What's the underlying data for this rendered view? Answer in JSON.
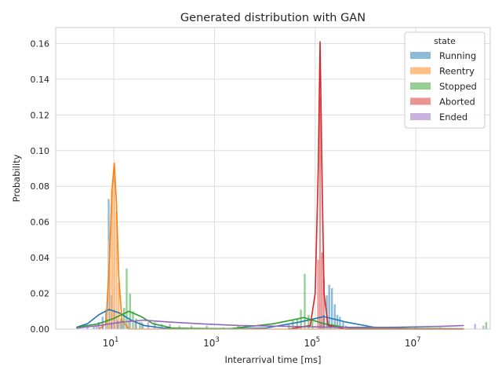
{
  "chart_data": {
    "type": "histogram",
    "title": "Generated distribution with GAN",
    "xlabel": "Interarrival time [ms]",
    "ylabel": "Probability",
    "xscale": "log",
    "xlim": [
      0.7,
      300000000
    ],
    "ylim": [
      0,
      0.169
    ],
    "x_ticks": [
      10,
      1000,
      100000,
      10000000
    ],
    "x_tick_labels": [
      {
        "base": "10",
        "exp": "1"
      },
      {
        "base": "10",
        "exp": "3"
      },
      {
        "base": "10",
        "exp": "5"
      },
      {
        "base": "10",
        "exp": "7"
      }
    ],
    "y_ticks": [
      0,
      0.02,
      0.04,
      0.06,
      0.08,
      0.1,
      0.12,
      0.14,
      0.16
    ],
    "y_tick_labels": [
      "0.00",
      "0.02",
      "0.04",
      "0.06",
      "0.08",
      "0.10",
      "0.12",
      "0.14",
      "0.16"
    ],
    "grid": true,
    "legend_title": "state",
    "legend_position": "upper-right",
    "series": [
      {
        "name": "Running",
        "color": "#1f77b4",
        "bars": [
          {
            "x": 3,
            "y": 0.001
          },
          {
            "x": 4,
            "y": 0.002
          },
          {
            "x": 5,
            "y": 0.004
          },
          {
            "x": 6,
            "y": 0.007
          },
          {
            "x": 7,
            "y": 0.011
          },
          {
            "x": 7.9,
            "y": 0.073
          },
          {
            "x": 8.9,
            "y": 0.019
          },
          {
            "x": 10,
            "y": 0.011
          },
          {
            "x": 11.5,
            "y": 0.006
          },
          {
            "x": 13,
            "y": 0.004
          },
          {
            "x": 15,
            "y": 0.003
          },
          {
            "x": 130000,
            "y": 0.003
          },
          {
            "x": 150000,
            "y": 0.008
          },
          {
            "x": 170000,
            "y": 0.019
          },
          {
            "x": 190000,
            "y": 0.025
          },
          {
            "x": 215000,
            "y": 0.023
          },
          {
            "x": 245000,
            "y": 0.014
          },
          {
            "x": 275000,
            "y": 0.008
          },
          {
            "x": 310000,
            "y": 0.007
          },
          {
            "x": 360000,
            "y": 0.004
          },
          {
            "x": 410000,
            "y": 0.002
          }
        ],
        "kde": [
          {
            "x": 1.8,
            "y": 0.001
          },
          {
            "x": 3,
            "y": 0.003
          },
          {
            "x": 5,
            "y": 0.008
          },
          {
            "x": 8,
            "y": 0.011
          },
          {
            "x": 13,
            "y": 0.009
          },
          {
            "x": 22,
            "y": 0.005
          },
          {
            "x": 40,
            "y": 0.002
          },
          {
            "x": 100,
            "y": 0.0005
          },
          {
            "x": 1000,
            "y": 0.0001
          },
          {
            "x": 10000,
            "y": 0.0005
          },
          {
            "x": 50000,
            "y": 0.004
          },
          {
            "x": 150000,
            "y": 0.007
          },
          {
            "x": 400000,
            "y": 0.004
          },
          {
            "x": 1500000,
            "y": 0.001
          },
          {
            "x": 10000000,
            "y": 0.0002
          },
          {
            "x": 90000000,
            "y": 0.0001
          }
        ]
      },
      {
        "name": "Reentry",
        "color": "#ff7f0e",
        "bars": [
          {
            "x": 7.5,
            "y": 0.006
          },
          {
            "x": 8.3,
            "y": 0.049
          },
          {
            "x": 9.2,
            "y": 0.078
          },
          {
            "x": 10.2,
            "y": 0.092
          },
          {
            "x": 11.3,
            "y": 0.066
          },
          {
            "x": 12.5,
            "y": 0.026
          },
          {
            "x": 13.8,
            "y": 0.006
          }
        ],
        "kde": [
          {
            "x": 5,
            "y": 0
          },
          {
            "x": 7,
            "y": 0.003
          },
          {
            "x": 8.2,
            "y": 0.04
          },
          {
            "x": 9.2,
            "y": 0.078
          },
          {
            "x": 10.2,
            "y": 0.093
          },
          {
            "x": 11.3,
            "y": 0.07
          },
          {
            "x": 12.5,
            "y": 0.03
          },
          {
            "x": 14.5,
            "y": 0.005
          },
          {
            "x": 20,
            "y": 0
          },
          {
            "x": 90000000,
            "y": 0
          }
        ]
      },
      {
        "name": "Stopped",
        "color": "#2ca02c",
        "bars": [
          {
            "x": 14,
            "y": 0.006
          },
          {
            "x": 16,
            "y": 0.012
          },
          {
            "x": 18,
            "y": 0.034
          },
          {
            "x": 21,
            "y": 0.02
          },
          {
            "x": 24,
            "y": 0.01
          },
          {
            "x": 28,
            "y": 0.006
          },
          {
            "x": 33,
            "y": 0.004
          },
          {
            "x": 38,
            "y": 0.003
          },
          {
            "x": 30000,
            "y": 0.003
          },
          {
            "x": 36000,
            "y": 0.005
          },
          {
            "x": 44000,
            "y": 0.006
          },
          {
            "x": 52000,
            "y": 0.011
          },
          {
            "x": 62000,
            "y": 0.031
          },
          {
            "x": 74000,
            "y": 0.008
          },
          {
            "x": 88000,
            "y": 0.005
          },
          {
            "x": 250000000,
            "y": 0.004
          }
        ],
        "kde": [
          {
            "x": 1.8,
            "y": 0.001
          },
          {
            "x": 5,
            "y": 0.003
          },
          {
            "x": 10,
            "y": 0.006
          },
          {
            "x": 20,
            "y": 0.01
          },
          {
            "x": 35,
            "y": 0.007
          },
          {
            "x": 60,
            "y": 0.003
          },
          {
            "x": 150,
            "y": 0.0005
          },
          {
            "x": 2000,
            "y": 0.0002
          },
          {
            "x": 15000,
            "y": 0.003
          },
          {
            "x": 60000,
            "y": 0.0065
          },
          {
            "x": 150000,
            "y": 0.003
          },
          {
            "x": 500000,
            "y": 0.0005
          },
          {
            "x": 90000000,
            "y": 0.0002
          }
        ]
      },
      {
        "name": "Aborted",
        "color": "#d62728",
        "bars": [
          {
            "x": 115000,
            "y": 0.039
          },
          {
            "x": 125000,
            "y": 0.13
          },
          {
            "x": 136000,
            "y": 0.043
          },
          {
            "x": 148000,
            "y": 0.028
          }
        ],
        "kde": [
          {
            "x": 30000,
            "y": 0
          },
          {
            "x": 80000,
            "y": 0.002
          },
          {
            "x": 100000,
            "y": 0.02
          },
          {
            "x": 115000,
            "y": 0.09
          },
          {
            "x": 125000,
            "y": 0.161
          },
          {
            "x": 136000,
            "y": 0.09
          },
          {
            "x": 150000,
            "y": 0.02
          },
          {
            "x": 180000,
            "y": 0.002
          },
          {
            "x": 400000,
            "y": 0
          },
          {
            "x": 90000000,
            "y": 0
          }
        ]
      },
      {
        "name": "Ended",
        "color": "#9467bd",
        "bars": [
          {
            "x": 4.5,
            "y": 0.002
          },
          {
            "x": 6,
            "y": 0.003
          },
          {
            "x": 9,
            "y": 0.004
          },
          {
            "x": 12,
            "y": 0.005
          },
          {
            "x": 15,
            "y": 0.004
          },
          {
            "x": 20,
            "y": 0.005
          },
          {
            "x": 27,
            "y": 0.005
          },
          {
            "x": 36,
            "y": 0.004
          },
          {
            "x": 48,
            "y": 0.004
          },
          {
            "x": 65,
            "y": 0.004
          },
          {
            "x": 90,
            "y": 0.003
          },
          {
            "x": 130,
            "y": 0.003
          },
          {
            "x": 200,
            "y": 0.002
          },
          {
            "x": 350,
            "y": 0.002
          },
          {
            "x": 700,
            "y": 0.002
          },
          {
            "x": 1500,
            "y": 0.001
          },
          {
            "x": 3000,
            "y": 0.002
          },
          {
            "x": 6000,
            "y": 0.001
          },
          {
            "x": 200000,
            "y": 0.001
          },
          {
            "x": 500000,
            "y": 0.001
          },
          {
            "x": 1000000,
            "y": 0.001
          },
          {
            "x": 3000000,
            "y": 0.001
          },
          {
            "x": 10000000,
            "y": 0.001
          },
          {
            "x": 30000000,
            "y": 0.001
          },
          {
            "x": 150000000,
            "y": 0.003
          },
          {
            "x": 220000000,
            "y": 0.002
          }
        ],
        "kde": [
          {
            "x": 1.8,
            "y": 0.0005
          },
          {
            "x": 5,
            "y": 0.002
          },
          {
            "x": 15,
            "y": 0.004
          },
          {
            "x": 40,
            "y": 0.005
          },
          {
            "x": 120,
            "y": 0.004
          },
          {
            "x": 500,
            "y": 0.003
          },
          {
            "x": 3000,
            "y": 0.002
          },
          {
            "x": 30000,
            "y": 0.0015
          },
          {
            "x": 300000,
            "y": 0.001
          },
          {
            "x": 3000000,
            "y": 0.001
          },
          {
            "x": 30000000,
            "y": 0.0015
          },
          {
            "x": 90000000,
            "y": 0.002
          }
        ]
      }
    ]
  }
}
